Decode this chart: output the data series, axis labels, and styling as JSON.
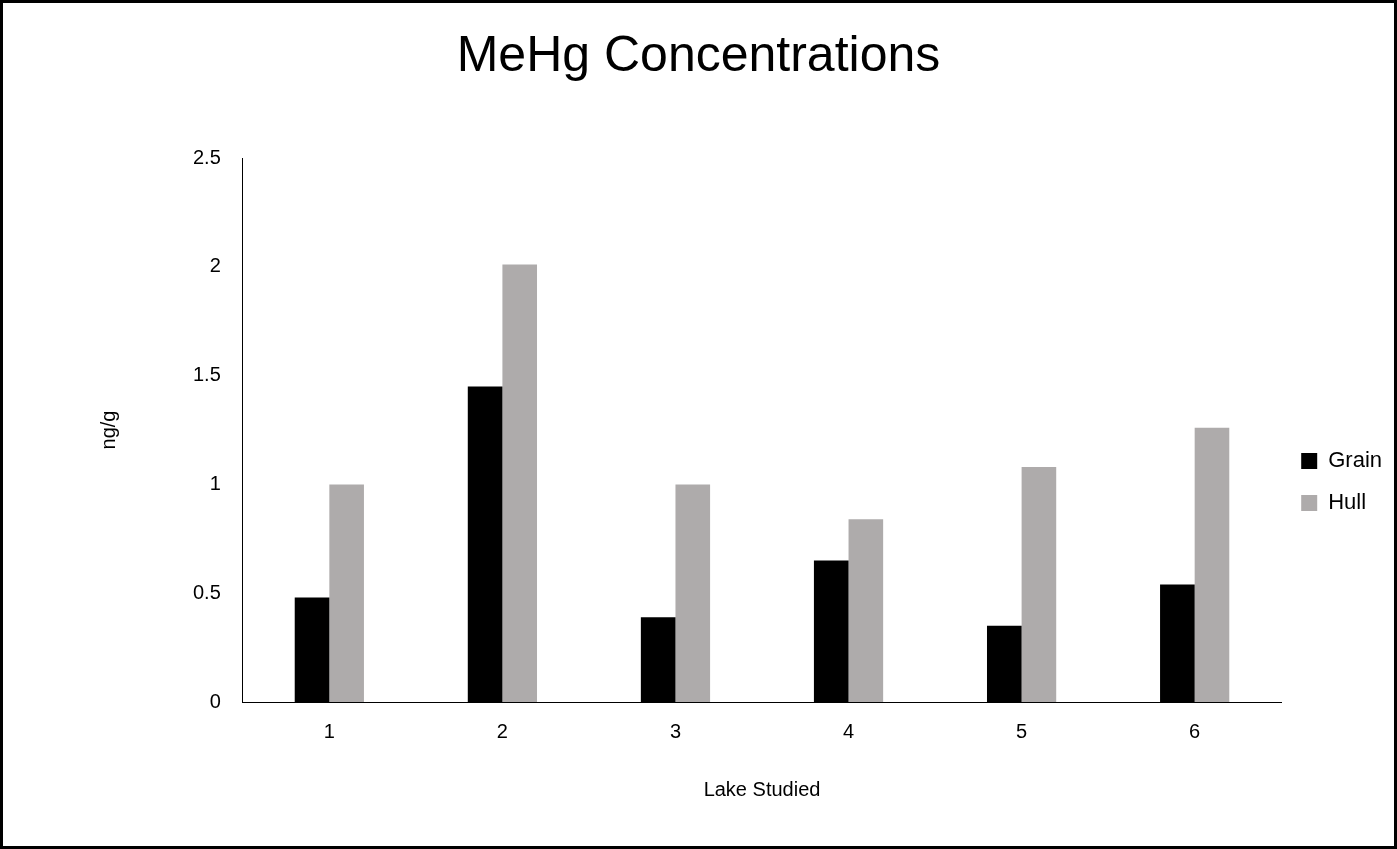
{
  "chart_data": {
    "type": "bar",
    "title": "MeHg Concentrations",
    "xlabel": "Lake Studied",
    "ylabel": "ng/g",
    "categories": [
      "1",
      "2",
      "3",
      "4",
      "5",
      "6"
    ],
    "series": [
      {
        "name": "Grain",
        "color": "#000000",
        "values": [
          0.48,
          1.45,
          0.39,
          0.65,
          0.35,
          0.54
        ]
      },
      {
        "name": "Hull",
        "color": "#aeabab",
        "values": [
          1.0,
          2.01,
          1.0,
          0.84,
          1.08,
          1.26
        ]
      }
    ],
    "ylim": [
      0,
      2.5
    ],
    "yticks": [
      0,
      0.5,
      1,
      1.5,
      2,
      2.5
    ],
    "grid": false,
    "legend": "right"
  }
}
